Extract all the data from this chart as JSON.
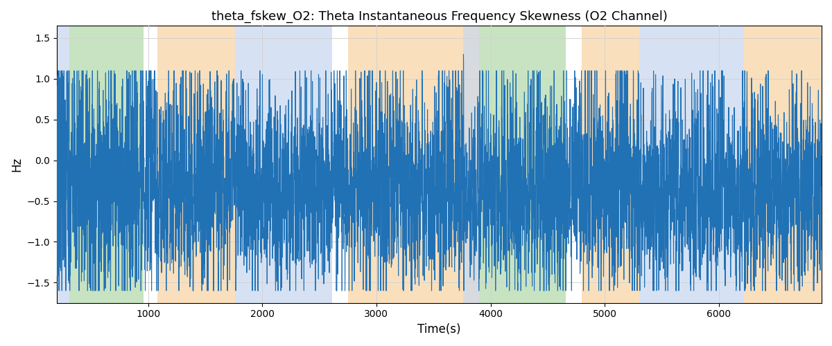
{
  "title": "theta_fskew_O2: Theta Instantaneous Frequency Skewness (O2 Channel)",
  "xlabel": "Time(s)",
  "ylabel": "Hz",
  "ylim": [
    -1.75,
    1.65
  ],
  "yticks": [
    -1.5,
    -1.0,
    -0.5,
    0.0,
    0.5,
    1.0,
    1.5
  ],
  "xlim": [
    200,
    6900
  ],
  "xticks": [
    1000,
    2000,
    3000,
    4000,
    5000,
    6000
  ],
  "line_color": "#2171b5",
  "line_width": 0.8,
  "background_spans": [
    {
      "xmin": 200,
      "xmax": 310,
      "color": "#aec6e8",
      "alpha": 0.5
    },
    {
      "xmin": 310,
      "xmax": 960,
      "color": "#90c985",
      "alpha": 0.5
    },
    {
      "xmin": 1080,
      "xmax": 1760,
      "color": "#f5c07a",
      "alpha": 0.5
    },
    {
      "xmin": 1760,
      "xmax": 2610,
      "color": "#aec6e8",
      "alpha": 0.5
    },
    {
      "xmin": 2750,
      "xmax": 3760,
      "color": "#f5c07a",
      "alpha": 0.5
    },
    {
      "xmin": 3760,
      "xmax": 3900,
      "color": "#b0b8c0",
      "alpha": 0.5
    },
    {
      "xmin": 3900,
      "xmax": 4660,
      "color": "#90c985",
      "alpha": 0.5
    },
    {
      "xmin": 4800,
      "xmax": 5300,
      "color": "#f5c07a",
      "alpha": 0.5
    },
    {
      "xmin": 5300,
      "xmax": 5510,
      "color": "#aec6e8",
      "alpha": 0.5
    },
    {
      "xmin": 5510,
      "xmax": 6220,
      "color": "#aec6e8",
      "alpha": 0.5
    },
    {
      "xmin": 6220,
      "xmax": 6900,
      "color": "#f5c07a",
      "alpha": 0.5
    }
  ],
  "time_start": 200,
  "time_end": 6900,
  "n_points": 6700,
  "seed": 7
}
